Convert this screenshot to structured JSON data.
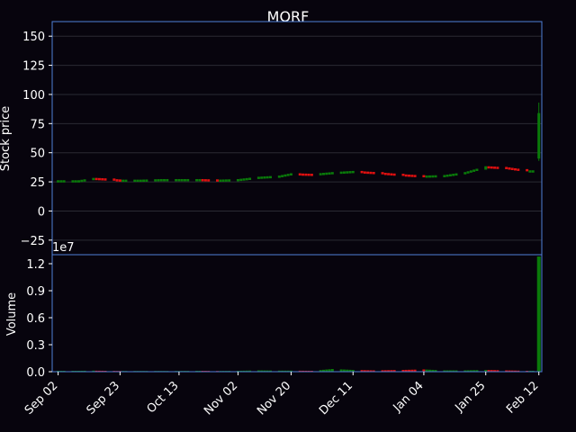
{
  "chart_data": {
    "type": "candlestick",
    "title": "MORF",
    "price_panel": {
      "ylabel": "Stock price",
      "ylim": [
        -37.5,
        162.5
      ],
      "yticks": [
        -25,
        0,
        25,
        50,
        75,
        100,
        125,
        150
      ],
      "ytick_labels": [
        "−25",
        "0",
        "25",
        "50",
        "75",
        "100",
        "125",
        "150"
      ],
      "grid": true
    },
    "volume_panel": {
      "ylabel": "Volume",
      "offset_label": "1e7",
      "ylim": [
        0,
        1.3
      ],
      "yticks": [
        0,
        0.3,
        0.6,
        0.9,
        1.2
      ],
      "ytick_labels": [
        "0.0",
        "0.3",
        "0.6",
        "0.9",
        "1.2"
      ]
    },
    "x_date_range": [
      "2020-08-31",
      "2021-02-13"
    ],
    "xticks": [
      "2020-09-02",
      "2020-09-23",
      "2020-10-13",
      "2020-11-02",
      "2020-11-20",
      "2020-12-11",
      "2021-01-04",
      "2021-01-25",
      "2021-02-12"
    ],
    "xtick_labels": [
      "Sep 02",
      "Sep 23",
      "Oct 13",
      "Nov 02",
      "Nov 20",
      "Dec 11",
      "Jan 04",
      "Jan 25",
      "Feb 12"
    ],
    "series": [
      {
        "date": "2020-09-02",
        "close": 26.0,
        "volume": 0.01
      },
      {
        "date": "2020-09-09",
        "close": 26.0,
        "volume": 0.01
      },
      {
        "date": "2020-09-14",
        "close": 28.0,
        "volume": 0.012
      },
      {
        "date": "2020-09-18",
        "close": 27.5,
        "volume": 0.01
      },
      {
        "date": "2020-09-23",
        "close": 26.5,
        "volume": 0.008
      },
      {
        "date": "2020-09-30",
        "close": 26.5,
        "volume": 0.008
      },
      {
        "date": "2020-10-07",
        "close": 27.0,
        "volume": 0.008
      },
      {
        "date": "2020-10-13",
        "close": 27.0,
        "volume": 0.008
      },
      {
        "date": "2020-10-20",
        "close": 27.0,
        "volume": 0.01
      },
      {
        "date": "2020-10-26",
        "close": 26.5,
        "volume": 0.008
      },
      {
        "date": "2020-11-02",
        "close": 27.0,
        "volume": 0.01
      },
      {
        "date": "2020-11-09",
        "close": 29.0,
        "volume": 0.015
      },
      {
        "date": "2020-11-16",
        "close": 30.0,
        "volume": 0.012
      },
      {
        "date": "2020-11-20",
        "close": 32.0,
        "volume": 0.012
      },
      {
        "date": "2020-11-27",
        "close": 31.5,
        "volume": 0.01
      },
      {
        "date": "2020-12-04",
        "close": 33.0,
        "volume": 0.03
      },
      {
        "date": "2020-12-11",
        "close": 34.0,
        "volume": 0.02
      },
      {
        "date": "2020-12-18",
        "close": 33.0,
        "volume": 0.015
      },
      {
        "date": "2020-12-28",
        "close": 31.0,
        "volume": 0.02
      },
      {
        "date": "2021-01-04",
        "close": 30.0,
        "volume": 0.025
      },
      {
        "date": "2021-01-11",
        "close": 30.5,
        "volume": 0.015
      },
      {
        "date": "2021-01-18",
        "close": 33.0,
        "volume": 0.015
      },
      {
        "date": "2021-01-25",
        "close": 38.0,
        "volume": 0.02
      },
      {
        "date": "2021-02-01",
        "close": 37.0,
        "volume": 0.015
      },
      {
        "date": "2021-02-08",
        "close": 34.5,
        "volume": 0.01
      },
      {
        "date": "2021-02-12",
        "open": 45,
        "close": 84,
        "high": 93,
        "low": 43,
        "volume": 1.28
      }
    ],
    "colors": {
      "up": "#0a7a0a",
      "down": "#e01010",
      "frame": "#4f7fd8",
      "grid": "#2a2a33",
      "background": "#07040d"
    }
  }
}
